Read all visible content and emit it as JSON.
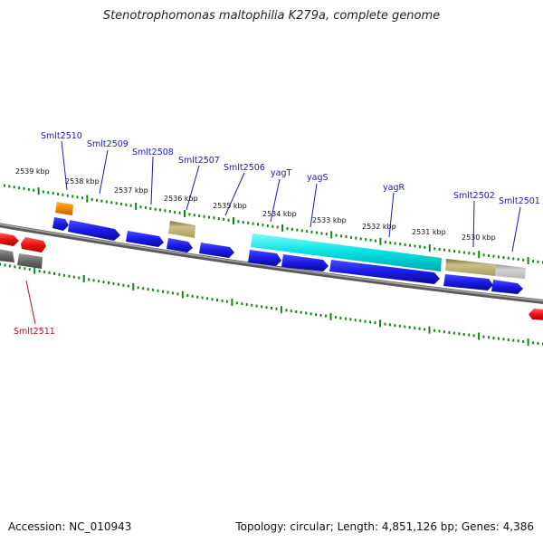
{
  "title": "Stenotrophomonas maltophilia K279a, complete genome",
  "accession": "Accession: NC_010943",
  "summary": "Topology: circular; Length: 4,851,126 bp; Genes: 4,386",
  "colors": {
    "cds": "#1a1ae8",
    "highlight": "#00e5e5",
    "olive": "#b8b070",
    "orange": "#f08a00",
    "gray_gene": "#707070",
    "light_gray_gene": "#c0c0c0",
    "red_gene": "#ee1111",
    "backbone": "#777777",
    "ticks": "#118811",
    "label_blue": "#1a1ab8",
    "label_red": "#c01010"
  },
  "kbp_labels": [
    "2539 kbp",
    "2538 kbp",
    "2537 kbp",
    "2536 kbp",
    "2535 kbp",
    "2534 kbp",
    "2533 kbp",
    "2532 kbp",
    "2531 kbp",
    "2530 kbp"
  ],
  "gene_labels": [
    "Smlt2510",
    "Smlt2509",
    "Smlt2508",
    "Smlt2507",
    "Smlt2506",
    "yagT",
    "yagS",
    "yagR",
    "Smlt2502",
    "Smlt2501",
    "Smlt2511"
  ]
}
